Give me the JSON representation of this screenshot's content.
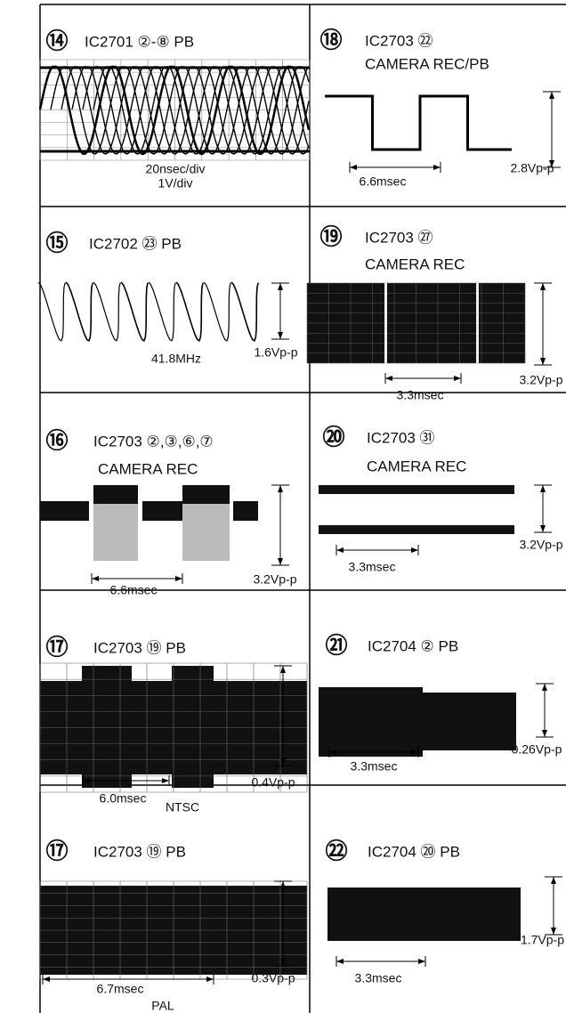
{
  "panels": [
    {
      "number": "⑭",
      "title": "IC2701 ②-⑧ PB",
      "labels": [
        "20nsec/div",
        "1V/div"
      ]
    },
    {
      "number": "⑱",
      "title": "IC2703 ㉒",
      "subtitle": "CAMERA REC/PB",
      "labels": [
        "6.6msec",
        "2.8Vp-p"
      ]
    },
    {
      "number": "⑮",
      "title": "IC2702 ㉓ PB",
      "labels": [
        "41.8MHz",
        "1.6Vp-p"
      ]
    },
    {
      "number": "⑲",
      "title": "IC2703 ㉗",
      "subtitle": "CAMERA REC",
      "labels": [
        "3.3msec",
        "3.2Vp-p"
      ]
    },
    {
      "number": "⑯",
      "title": "IC2703 ②,③,⑥,⑦",
      "subtitle": "CAMERA REC",
      "labels": [
        "6.6msec",
        "3.2Vp-p"
      ]
    },
    {
      "number": "⑳",
      "title": "IC2703 ㉛",
      "subtitle": "CAMERA REC",
      "labels": [
        "3.3msec",
        "3.2Vp-p"
      ]
    },
    {
      "number": "⑰",
      "title": "IC2703 ⑲ PB",
      "labels": [
        "6.0msec",
        "NTSC",
        "0.4Vp-p"
      ]
    },
    {
      "number": "㉑",
      "title": "IC2704 ② PB",
      "labels": [
        "3.3msec",
        "0.26Vp-p"
      ]
    },
    {
      "number": "⑰",
      "title": "IC2703 ⑲ PB",
      "labels": [
        "6.7msec",
        "PAL",
        "0.3Vp-p"
      ]
    },
    {
      "number": "㉒",
      "title": "IC2704 ⑳ PB",
      "labels": [
        "3.3msec",
        "1.7Vp-p"
      ]
    }
  ]
}
